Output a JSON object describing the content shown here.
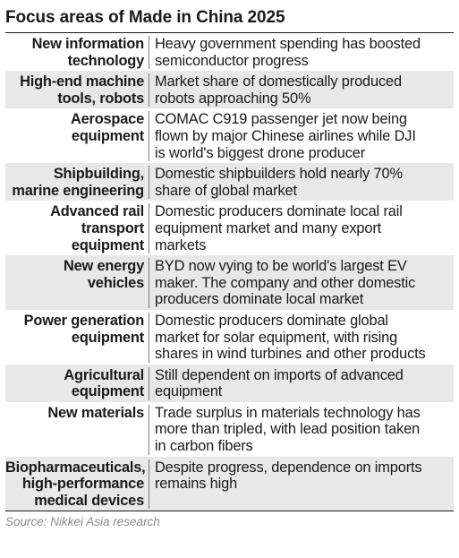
{
  "title": "Focus areas of Made in China 2025",
  "rows": [
    {
      "area": [
        "New information",
        "technology"
      ],
      "description": [
        "Heavy government spending has boosted",
        "semiconductor progress"
      ]
    },
    {
      "area": [
        "High-end machine",
        "tools, robots"
      ],
      "description": [
        "Market share of domestically produced",
        "robots approaching 50%"
      ]
    },
    {
      "area": [
        "Aerospace",
        "equipment"
      ],
      "description": [
        "COMAC C919 passenger jet now being",
        "flown by major Chinese airlines while DJI",
        "is world's biggest drone producer"
      ]
    },
    {
      "area": [
        "Shipbuilding,",
        "marine engineering"
      ],
      "description": [
        "Domestic shipbuilders hold nearly 70%",
        "share of global market"
      ]
    },
    {
      "area": [
        "Advanced rail",
        "transport",
        "equipment"
      ],
      "description": [
        "Domestic producers dominate local rail",
        "equipment market and many export",
        "markets"
      ]
    },
    {
      "area": [
        "New energy",
        "vehicles"
      ],
      "description": [
        "BYD now vying to be world's largest EV",
        "maker. The company and other domestic",
        "producers dominate local market"
      ]
    },
    {
      "area": [
        "Power generation",
        "equipment"
      ],
      "description": [
        "Domestic producers dominate global",
        "market for solar equipment, with rising",
        "shares in wind turbines and other products"
      ]
    },
    {
      "area": [
        "Agricultural",
        "equipment"
      ],
      "description": [
        "Still dependent on imports of advanced",
        "equipment"
      ]
    },
    {
      "area": [
        "New materials"
      ],
      "description": [
        "Trade surplus in materials technology has",
        "more than tripled, with lead position taken",
        "in carbon fibers"
      ]
    },
    {
      "area": [
        "Biopharmaceuticals,",
        "high-performance",
        "medical devices"
      ],
      "description": [
        "Despite progress, dependence on imports",
        "remains high"
      ]
    }
  ],
  "source": "Source: Nikkei Asia research"
}
